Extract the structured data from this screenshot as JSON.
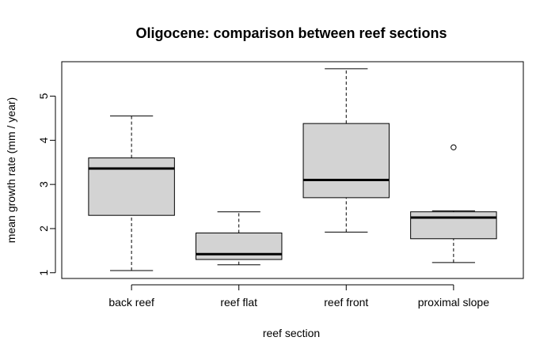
{
  "chart_data": {
    "type": "boxplot",
    "title": "Oligocene: comparison between reef sections",
    "xlabel": "reef section",
    "ylabel": "mean growth rate (mm / year)",
    "categories": [
      "back reef",
      "reef flat",
      "reef front",
      "proximal slope"
    ],
    "ylim": [
      0.87,
      5.78
    ],
    "yticks": [
      1,
      2,
      3,
      4,
      5
    ],
    "yticks_labels": [
      "1",
      "2",
      "3",
      "4",
      "5"
    ],
    "boxes": [
      {
        "category": "back reef",
        "whisker_low": 1.05,
        "q1": 2.3,
        "median": 3.36,
        "q3": 3.6,
        "whisker_high": 4.55,
        "outliers": []
      },
      {
        "category": "reef flat",
        "whisker_low": 1.18,
        "q1": 1.3,
        "median": 1.42,
        "q3": 1.9,
        "whisker_high": 2.38,
        "outliers": []
      },
      {
        "category": "reef front",
        "whisker_low": 1.92,
        "q1": 2.7,
        "median": 3.1,
        "q3": 4.38,
        "whisker_high": 5.62,
        "outliers": []
      },
      {
        "category": "proximal slope",
        "whisker_low": 1.23,
        "q1": 1.77,
        "median": 2.25,
        "q3": 2.38,
        "whisker_high": 2.4,
        "outliers": [
          3.84
        ]
      }
    ],
    "box_fill": "#d3d3d3",
    "line_color": "#000000",
    "grid": false,
    "legend": "none"
  }
}
